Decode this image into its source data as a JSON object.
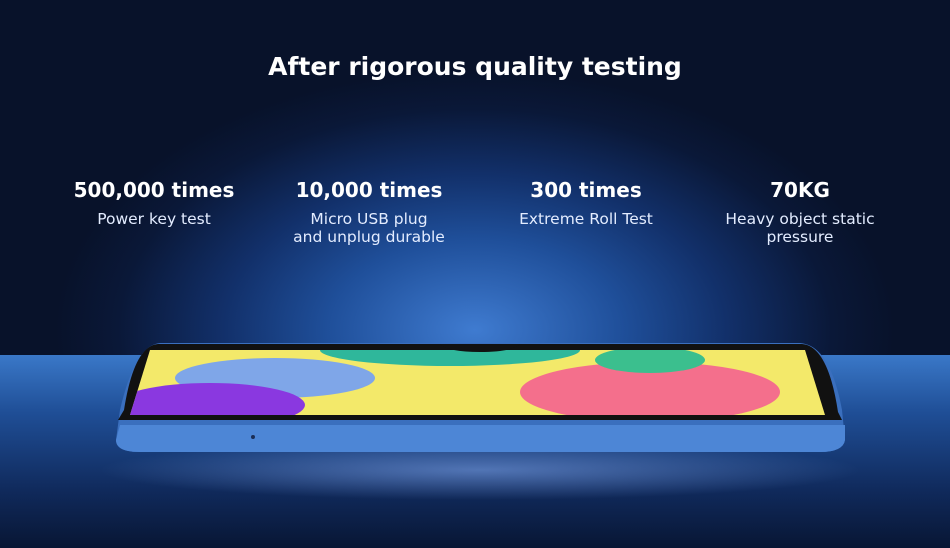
{
  "title": "After rigorous quality testing",
  "stats": [
    {
      "value": "500,000 times",
      "line1": "Power key test",
      "line2": ""
    },
    {
      "value": "10,000 times",
      "line1": "Micro USB plug",
      "line2": "and unplug durable"
    },
    {
      "value": "300 times",
      "line1": "Extreme Roll Test",
      "line2": ""
    },
    {
      "value": "70KG",
      "line1": "Heavy object static",
      "line2": "pressure"
    }
  ],
  "colors": {
    "background": "#0a1838",
    "glow": "#3f7bd0",
    "phone_body": "#3d74c4"
  }
}
